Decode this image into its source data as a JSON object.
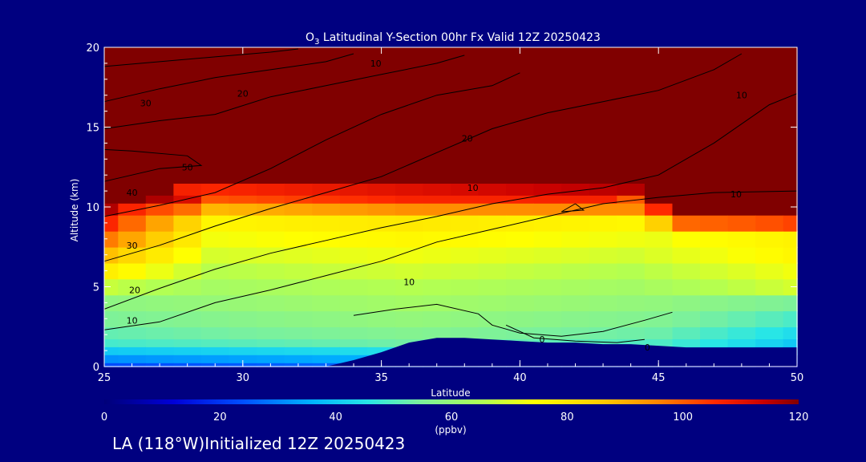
{
  "chart_data": {
    "type": "heatmap",
    "title": {
      "prefix": "O",
      "subscript": "3",
      "rest": " Latitudinal Y-Section 00hr  Fx Valid 12Z 20250423"
    },
    "xlabel": "Latitude",
    "ylabel": "Altitude (km)",
    "xlim": [
      25,
      50
    ],
    "ylim": [
      0,
      20
    ],
    "xticks": [
      "25",
      "30",
      "35",
      "40",
      "45",
      "50"
    ],
    "yticks": [
      "0",
      "5",
      "10",
      "15",
      "20"
    ],
    "colorbar": {
      "label": "(ppbv)",
      "range": [
        0,
        120
      ],
      "ticks": [
        "0",
        "20",
        "40",
        "60",
        "80",
        "100",
        "120"
      ]
    },
    "field": {
      "x": [
        25,
        26,
        27,
        28,
        29,
        30,
        31,
        32,
        33,
        34,
        35,
        36,
        37,
        38,
        39,
        40,
        41,
        42,
        43,
        44,
        45,
        46,
        47,
        48,
        49,
        50
      ],
      "y": [
        0,
        0.5,
        1,
        1.5,
        2,
        3,
        4,
        5,
        6,
        7,
        8,
        9,
        10,
        10.5,
        11,
        12,
        13,
        14,
        15,
        16,
        17,
        18,
        19,
        20
      ]
    },
    "terrain": {
      "x": [
        25,
        33,
        34,
        35,
        36,
        37,
        38,
        39,
        40,
        41,
        42,
        43,
        44,
        45,
        46,
        47,
        48,
        49,
        50
      ],
      "height_km": [
        0,
        0,
        0.4,
        0.9,
        1.5,
        1.8,
        1.8,
        1.7,
        1.6,
        1.5,
        1.5,
        1.4,
        1.4,
        1.3,
        1.2,
        1.2,
        1.2,
        1.2,
        1.2
      ]
    },
    "contour_labels": [
      "10",
      "20",
      "30",
      "40",
      "50",
      "0"
    ]
  },
  "footer": "LA (118°W)Initialized 12Z 20250423"
}
